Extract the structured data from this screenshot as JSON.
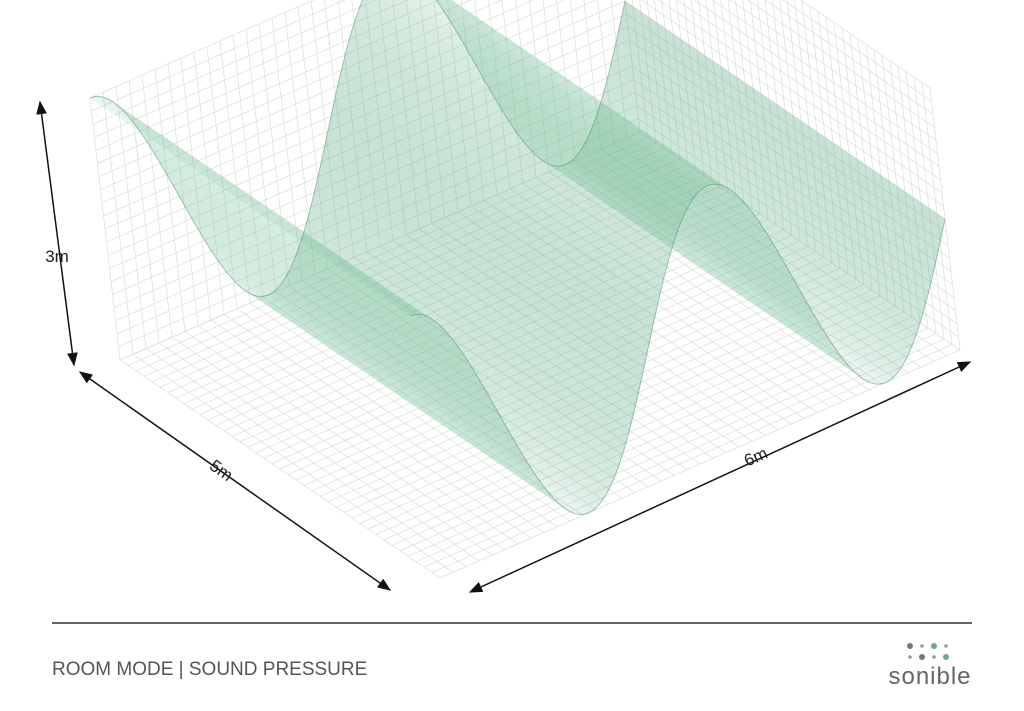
{
  "axes": {
    "height": "3m",
    "depth": "5m",
    "width": "6m"
  },
  "footer": {
    "title": "ROOM MODE | SOUND PRESSURE",
    "logo": "sonible"
  }
}
